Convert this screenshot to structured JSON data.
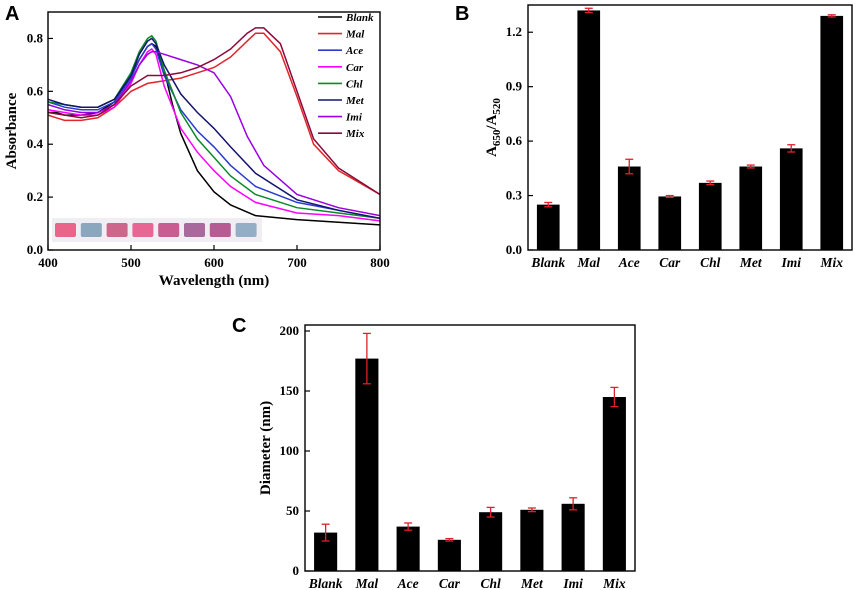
{
  "chart_data": [
    {
      "id": "A",
      "panel_label": "A",
      "type": "line",
      "xlabel": "Wavelength (nm)",
      "ylabel": "Absorbance",
      "xlim": [
        400,
        800
      ],
      "ylim": [
        0.0,
        0.9
      ],
      "x_ticks": [
        "400",
        "500",
        "600",
        "700",
        "800"
      ],
      "y_ticks": [
        "0.0",
        "0.2",
        "0.4",
        "0.6",
        "0.8"
      ],
      "legend_position": "top-right",
      "cuvette_colors": [
        "#e8557e",
        "#7f9fb8",
        "#c8567e",
        "#e6578a",
        "#c24d86",
        "#a05a92",
        "#b04a88",
        "#8aa6c0"
      ],
      "series": [
        {
          "name": "Blank",
          "color": "#000000",
          "x": [
            400,
            410,
            420,
            440,
            460,
            480,
            500,
            510,
            520,
            525,
            530,
            540,
            550,
            560,
            580,
            600,
            620,
            650,
            700,
            750,
            800
          ],
          "y": [
            0.52,
            0.52,
            0.51,
            0.51,
            0.52,
            0.56,
            0.66,
            0.72,
            0.77,
            0.78,
            0.77,
            0.68,
            0.55,
            0.44,
            0.3,
            0.22,
            0.17,
            0.13,
            0.115,
            0.105,
            0.095
          ]
        },
        {
          "name": "Mal",
          "color": "#e0262b",
          "x": [
            400,
            410,
            420,
            440,
            460,
            480,
            500,
            520,
            540,
            560,
            580,
            600,
            620,
            640,
            650,
            660,
            680,
            700,
            720,
            750,
            800
          ],
          "y": [
            0.51,
            0.5,
            0.49,
            0.49,
            0.5,
            0.54,
            0.6,
            0.63,
            0.64,
            0.65,
            0.67,
            0.69,
            0.73,
            0.79,
            0.82,
            0.82,
            0.75,
            0.58,
            0.4,
            0.3,
            0.21
          ]
        },
        {
          "name": "Ace",
          "color": "#2a3ccf",
          "x": [
            400,
            420,
            440,
            460,
            480,
            500,
            510,
            520,
            525,
            530,
            540,
            560,
            580,
            600,
            620,
            650,
            700,
            750,
            800
          ],
          "y": [
            0.56,
            0.54,
            0.53,
            0.53,
            0.56,
            0.65,
            0.72,
            0.77,
            0.78,
            0.76,
            0.66,
            0.53,
            0.45,
            0.39,
            0.32,
            0.24,
            0.18,
            0.15,
            0.12
          ]
        },
        {
          "name": "Car",
          "color": "#ff00ff",
          "x": [
            400,
            420,
            440,
            460,
            480,
            500,
            510,
            520,
            525,
            530,
            540,
            560,
            580,
            600,
            620,
            650,
            700,
            750,
            800
          ],
          "y": [
            0.53,
            0.52,
            0.51,
            0.51,
            0.54,
            0.63,
            0.7,
            0.75,
            0.76,
            0.74,
            0.62,
            0.46,
            0.37,
            0.3,
            0.24,
            0.18,
            0.14,
            0.13,
            0.11
          ]
        },
        {
          "name": "Chl",
          "color": "#0a8a2a",
          "x": [
            400,
            420,
            440,
            460,
            480,
            500,
            510,
            520,
            525,
            530,
            540,
            560,
            580,
            600,
            620,
            650,
            700,
            750,
            800
          ],
          "y": [
            0.56,
            0.55,
            0.54,
            0.54,
            0.57,
            0.67,
            0.75,
            0.8,
            0.81,
            0.79,
            0.68,
            0.52,
            0.42,
            0.35,
            0.28,
            0.21,
            0.16,
            0.14,
            0.12
          ]
        },
        {
          "name": "Met",
          "color": "#14146e",
          "x": [
            400,
            420,
            440,
            460,
            480,
            500,
            510,
            520,
            525,
            530,
            540,
            560,
            580,
            600,
            620,
            650,
            700,
            750,
            800
          ],
          "y": [
            0.57,
            0.55,
            0.54,
            0.54,
            0.57,
            0.66,
            0.74,
            0.79,
            0.8,
            0.78,
            0.7,
            0.59,
            0.52,
            0.46,
            0.39,
            0.29,
            0.19,
            0.15,
            0.12
          ]
        },
        {
          "name": "Imi",
          "color": "#9a00e0",
          "x": [
            400,
            420,
            440,
            460,
            480,
            500,
            510,
            520,
            525,
            530,
            540,
            560,
            580,
            600,
            620,
            640,
            660,
            700,
            750,
            800
          ],
          "y": [
            0.55,
            0.53,
            0.52,
            0.52,
            0.55,
            0.64,
            0.7,
            0.74,
            0.75,
            0.75,
            0.74,
            0.72,
            0.7,
            0.67,
            0.58,
            0.43,
            0.32,
            0.21,
            0.16,
            0.13
          ]
        },
        {
          "name": "Mix",
          "color": "#8b0a3a",
          "x": [
            400,
            420,
            440,
            460,
            480,
            500,
            520,
            540,
            560,
            580,
            600,
            620,
            640,
            650,
            660,
            680,
            700,
            720,
            750,
            800
          ],
          "y": [
            0.52,
            0.51,
            0.5,
            0.51,
            0.55,
            0.62,
            0.66,
            0.66,
            0.67,
            0.69,
            0.72,
            0.76,
            0.82,
            0.84,
            0.84,
            0.78,
            0.6,
            0.42,
            0.31,
            0.21
          ]
        }
      ]
    },
    {
      "id": "B",
      "panel_label": "B",
      "type": "bar",
      "ylabel_main": "A",
      "ylabel_sub1": "650",
      "ylabel_mid": "/A",
      "ylabel_sub2": "520",
      "categories": [
        "Blank",
        "Mal",
        "Ace",
        "Car",
        "Chl",
        "Met",
        "Imi",
        "Mix"
      ],
      "values": [
        0.25,
        1.32,
        0.46,
        0.295,
        0.37,
        0.46,
        0.56,
        1.29
      ],
      "errors": [
        0.012,
        0.012,
        0.04,
        0.005,
        0.01,
        0.008,
        0.02,
        0.006
      ],
      "ylim": [
        0.0,
        1.35
      ],
      "y_ticks": [
        "0.0",
        "0.3",
        "0.6",
        "0.9",
        "1.2"
      ]
    },
    {
      "id": "C",
      "panel_label": "C",
      "type": "bar",
      "ylabel": "Diameter (nm)",
      "categories": [
        "Blank",
        "Mal",
        "Ace",
        "Car",
        "Chl",
        "Met",
        "Imi",
        "Mix"
      ],
      "values": [
        32,
        177,
        37,
        26,
        49,
        51,
        56,
        145
      ],
      "errors": [
        7,
        21,
        3,
        1,
        4,
        1.5,
        5,
        8
      ],
      "ylim": [
        0,
        205
      ],
      "y_ticks": [
        "0",
        "50",
        "100",
        "150",
        "200"
      ]
    }
  ]
}
